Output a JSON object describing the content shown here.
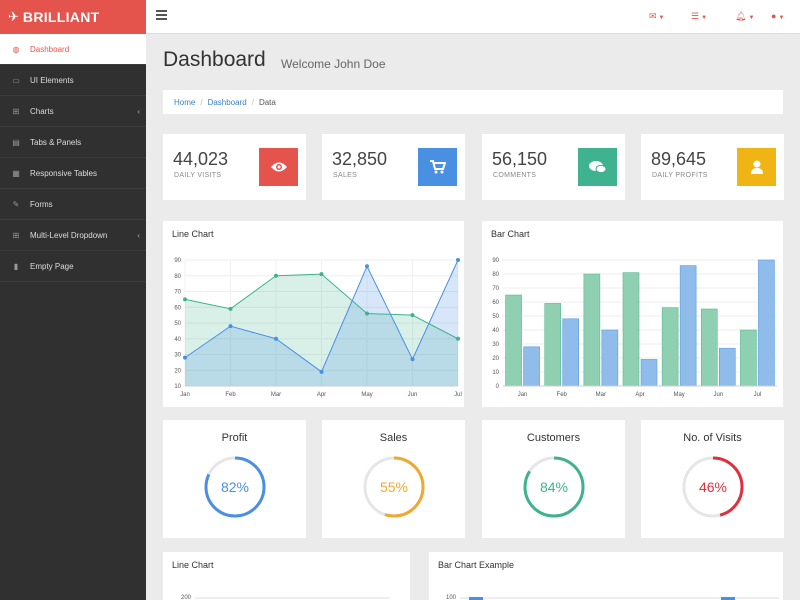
{
  "brand": {
    "name": "BRILLIANT"
  },
  "sidebar": {
    "items": [
      {
        "label": "Dashboard",
        "icon": "dashboard-icon",
        "active": true
      },
      {
        "label": "UI Elements",
        "icon": "desktop-icon"
      },
      {
        "label": "Charts",
        "icon": "sitemap-icon",
        "has_submenu": true
      },
      {
        "label": "Tabs & Panels",
        "icon": "panels-icon"
      },
      {
        "label": "Responsive Tables",
        "icon": "table-icon"
      },
      {
        "label": "Forms",
        "icon": "edit-icon"
      },
      {
        "label": "Multi-Level Dropdown",
        "icon": "sitemap-icon",
        "has_submenu": true
      },
      {
        "label": "Empty Page",
        "icon": "file-icon"
      }
    ]
  },
  "topbar": {
    "icons": [
      "envelope-icon",
      "tasks-icon",
      "bell-icon",
      "user-icon"
    ]
  },
  "page": {
    "title": "Dashboard",
    "subtitle": "Welcome John Doe"
  },
  "breadcrumb": {
    "items": [
      "Home",
      "Dashboard",
      "Data"
    ]
  },
  "stats": [
    {
      "value": "44,023",
      "label": "DAILY VISITS",
      "icon": "eye-icon",
      "color": "#e4544c"
    },
    {
      "value": "32,850",
      "label": "SALES",
      "icon": "cart-icon",
      "color": "#4a90e2"
    },
    {
      "value": "56,150",
      "label": "COMMENTS",
      "icon": "comments-icon",
      "color": "#3fb28f"
    },
    {
      "value": "89,645",
      "label": "DAILY PROFITS",
      "icon": "user-icon",
      "color": "#f0b515"
    }
  ],
  "panels": {
    "line_chart_title": "Line Chart",
    "bar_chart_title": "Bar Chart",
    "line_chart2_title": "Line Chart",
    "bar_chart2_title": "Bar Chart Example"
  },
  "gauges": [
    {
      "title": "Profit",
      "percent": 82,
      "label": "82%",
      "color": "#4a90e2"
    },
    {
      "title": "Sales",
      "percent": 55,
      "label": "55%",
      "color": "#f0a830"
    },
    {
      "title": "Customers",
      "percent": 84,
      "label": "84%",
      "color": "#3fb28f"
    },
    {
      "title": "No. of Visits",
      "percent": 46,
      "label": "46%",
      "color": "#e0303e"
    }
  ],
  "chart_data": [
    {
      "type": "area",
      "title": "Line Chart",
      "categories": [
        "Jan",
        "Feb",
        "Mar",
        "Apr",
        "May",
        "Jun",
        "Jul"
      ],
      "ylim": [
        10,
        90
      ],
      "yticks": [
        10,
        20,
        30,
        40,
        50,
        60,
        70,
        80,
        90
      ],
      "grid": true,
      "series": [
        {
          "values": [
            65,
            59,
            80,
            81,
            56,
            55,
            40
          ],
          "color": "#3fb28f"
        },
        {
          "values": [
            28,
            48,
            40,
            19,
            86,
            27,
            90
          ],
          "color": "#4a90e2"
        }
      ]
    },
    {
      "type": "bar",
      "title": "Bar Chart",
      "categories": [
        "Jan",
        "Feb",
        "Mar",
        "Apr",
        "May",
        "Jun",
        "Jul"
      ],
      "ylim": [
        0,
        90
      ],
      "yticks": [
        0,
        10,
        20,
        30,
        40,
        50,
        60,
        70,
        80,
        90
      ],
      "grid": true,
      "series": [
        {
          "values": [
            65,
            59,
            80,
            81,
            56,
            55,
            40
          ],
          "color": "#8fd0b3"
        },
        {
          "values": [
            28,
            48,
            40,
            19,
            86,
            27,
            90
          ],
          "color": "#8fbcea"
        }
      ]
    },
    {
      "type": "line",
      "title": "Line Chart",
      "yticks": [
        200
      ]
    },
    {
      "type": "bar",
      "title": "Bar Chart Example",
      "yticks": [
        100
      ]
    }
  ]
}
